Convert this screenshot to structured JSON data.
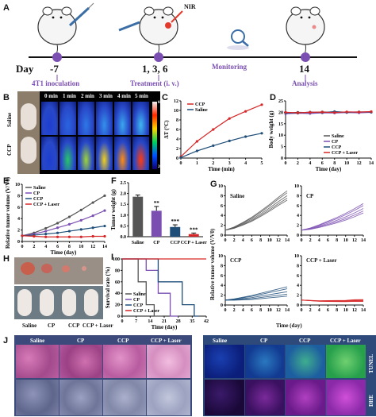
{
  "panels": {
    "A": {
      "label": "A",
      "day_label": "Day",
      "nir_label": "NIR",
      "timeline": [
        {
          "day": "-7",
          "caption": "4T1 inoculation"
        },
        {
          "day": "1, 3, 6",
          "caption": "Treatment (i. v.)"
        },
        {
          "day": "Monitoring",
          "caption": ""
        },
        {
          "day": "14",
          "caption": "Analysis"
        }
      ]
    },
    "B": {
      "label": "B",
      "rows": [
        "Saline",
        "CCP"
      ],
      "times": [
        "0 min",
        "1 min",
        "2 min",
        "3 min",
        "4 min",
        "5 min"
      ],
      "scale_max": "60°C",
      "scale_min": "20°C"
    },
    "C": {
      "label": "C"
    },
    "D": {
      "label": "D"
    },
    "E": {
      "label": "E"
    },
    "F": {
      "label": "F"
    },
    "G": {
      "label": "G",
      "ylabel": "Relative tumor volume (V/V0)",
      "xlabel": "Time (day)",
      "subplots": [
        "Saline",
        "CP",
        "CCP",
        "CCP + Laser"
      ]
    },
    "H": {
      "label": "H",
      "groups": [
        "Saline",
        "CP",
        "CCP",
        "CCP + Laser"
      ]
    },
    "I": {
      "label": "I"
    },
    "J": {
      "label": "J",
      "left_cols": [
        "Saline",
        "CP",
        "CCP",
        "CCP + Laser"
      ],
      "left_rows": [
        "H&E",
        "Ki67"
      ],
      "right_cols": [
        "Saline",
        "CP",
        "CCP",
        "CCP + Laser"
      ],
      "right_rows": [
        "TUNEL",
        "DHE"
      ]
    }
  },
  "chart_data": [
    {
      "id": "C",
      "type": "line",
      "xlabel": "Time (min)",
      "ylabel": "ΔT (°C)",
      "x": [
        0,
        1,
        2,
        3,
        4,
        5
      ],
      "xlim": [
        0,
        5
      ],
      "ylim": [
        0,
        12
      ],
      "yticks": [
        0,
        2,
        4,
        6,
        8,
        10,
        12
      ],
      "legend": "top-left",
      "series": [
        {
          "name": "CCP",
          "color": "#d62728",
          "values": [
            0.3,
            3.5,
            6.0,
            8.3,
            9.8,
            11.2
          ]
        },
        {
          "name": "Saline",
          "color": "#1f4e79",
          "values": [
            0.1,
            1.5,
            2.6,
            3.6,
            4.5,
            5.2
          ]
        }
      ]
    },
    {
      "id": "D",
      "type": "line",
      "xlabel": "Time (day)",
      "ylabel": "Body weight (g)",
      "x": [
        0,
        2,
        4,
        6,
        8,
        10,
        12,
        14
      ],
      "xlim": [
        0,
        14
      ],
      "ylim": [
        0,
        25
      ],
      "yticks": [
        0,
        5,
        10,
        15,
        20,
        25
      ],
      "legend": "bottom-right",
      "series": [
        {
          "name": "Saline",
          "color": "#555555",
          "values": [
            19.6,
            20.0,
            19.8,
            20.2,
            19.9,
            20.1,
            20.0,
            20.2
          ]
        },
        {
          "name": "CP",
          "color": "#7b4fb2",
          "values": [
            19.4,
            19.6,
            19.5,
            19.8,
            19.7,
            19.9,
            19.8,
            20.0
          ]
        },
        {
          "name": "CCP",
          "color": "#1f4e79",
          "values": [
            19.8,
            19.7,
            20.1,
            19.9,
            20.3,
            20.0,
            20.2,
            20.1
          ]
        },
        {
          "name": "CCP + Laser",
          "color": "#d62728",
          "values": [
            20.0,
            19.8,
            20.0,
            20.1,
            19.9,
            20.2,
            20.1,
            20.3
          ]
        }
      ]
    },
    {
      "id": "E",
      "type": "line",
      "xlabel": "Time (day)",
      "ylabel": "Relative tumor volume (V/V0)",
      "x": [
        0,
        2,
        4,
        6,
        8,
        10,
        12,
        14
      ],
      "xlim": [
        0,
        14
      ],
      "ylim": [
        0,
        10
      ],
      "yticks": [
        0,
        2,
        4,
        6,
        8,
        10
      ],
      "legend": "top-left",
      "series": [
        {
          "name": "Saline",
          "color": "#555555",
          "values": [
            1.0,
            1.5,
            2.3,
            3.2,
            4.3,
            5.5,
            6.8,
            8.0
          ]
        },
        {
          "name": "CP",
          "color": "#7b4fb2",
          "values": [
            1.0,
            1.3,
            1.8,
            2.4,
            3.0,
            3.7,
            4.5,
            5.4
          ]
        },
        {
          "name": "CCP",
          "color": "#1f4e79",
          "values": [
            1.0,
            1.1,
            1.3,
            1.5,
            1.8,
            2.1,
            2.4,
            2.7
          ]
        },
        {
          "name": "CCP + Laser",
          "color": "#d62728",
          "values": [
            1.0,
            0.9,
            0.8,
            0.8,
            0.8,
            0.8,
            0.9,
            0.9
          ]
        }
      ]
    },
    {
      "id": "F",
      "type": "bar",
      "ylabel": "Tumor weight (g)",
      "categories": [
        "Saline",
        "CP",
        "CCP",
        "CCP + Laser"
      ],
      "values": [
        1.85,
        1.2,
        0.45,
        0.12
      ],
      "errors": [
        0.08,
        0.2,
        0.1,
        0.05
      ],
      "colors": [
        "#555555",
        "#7b4fb2",
        "#1f4e79",
        "#d62728"
      ],
      "annotations": [
        "",
        "**",
        "***",
        "***"
      ],
      "ylim": [
        0,
        2.5
      ],
      "yticks": [
        0.0,
        0.5,
        1.0,
        1.5,
        2.0,
        2.5
      ]
    },
    {
      "id": "I",
      "type": "line",
      "xlabel": "Time (day)",
      "ylabel": "Survival rate (%)",
      "xticks": [
        0,
        7,
        14,
        21,
        28,
        35,
        42
      ],
      "xlim": [
        0,
        42
      ],
      "ylim": [
        0,
        100
      ],
      "yticks": [
        0,
        20,
        40,
        60,
        80,
        100
      ],
      "legend": "bottom-left",
      "series": [
        {
          "name": "Saline",
          "color": "#555555",
          "steps": [
            [
              0,
              100
            ],
            [
              8,
              100
            ],
            [
              8,
              60
            ],
            [
              12,
              60
            ],
            [
              12,
              20
            ],
            [
              16,
              20
            ],
            [
              16,
              0
            ],
            [
              20,
              0
            ]
          ]
        },
        {
          "name": "CP",
          "color": "#7b4fb2",
          "steps": [
            [
              0,
              100
            ],
            [
              12,
              100
            ],
            [
              12,
              80
            ],
            [
              18,
              80
            ],
            [
              18,
              40
            ],
            [
              24,
              40
            ],
            [
              24,
              0
            ],
            [
              28,
              0
            ]
          ]
        },
        {
          "name": "CCP",
          "color": "#1f4e79",
          "steps": [
            [
              0,
              100
            ],
            [
              18,
              100
            ],
            [
              18,
              60
            ],
            [
              30,
              60
            ],
            [
              30,
              20
            ],
            [
              36,
              20
            ],
            [
              36,
              0
            ],
            [
              38,
              0
            ]
          ]
        },
        {
          "name": "CCP + Laser",
          "color": "#d62728",
          "steps": [
            [
              0,
              100
            ],
            [
              42,
              100
            ]
          ]
        }
      ]
    }
  ]
}
